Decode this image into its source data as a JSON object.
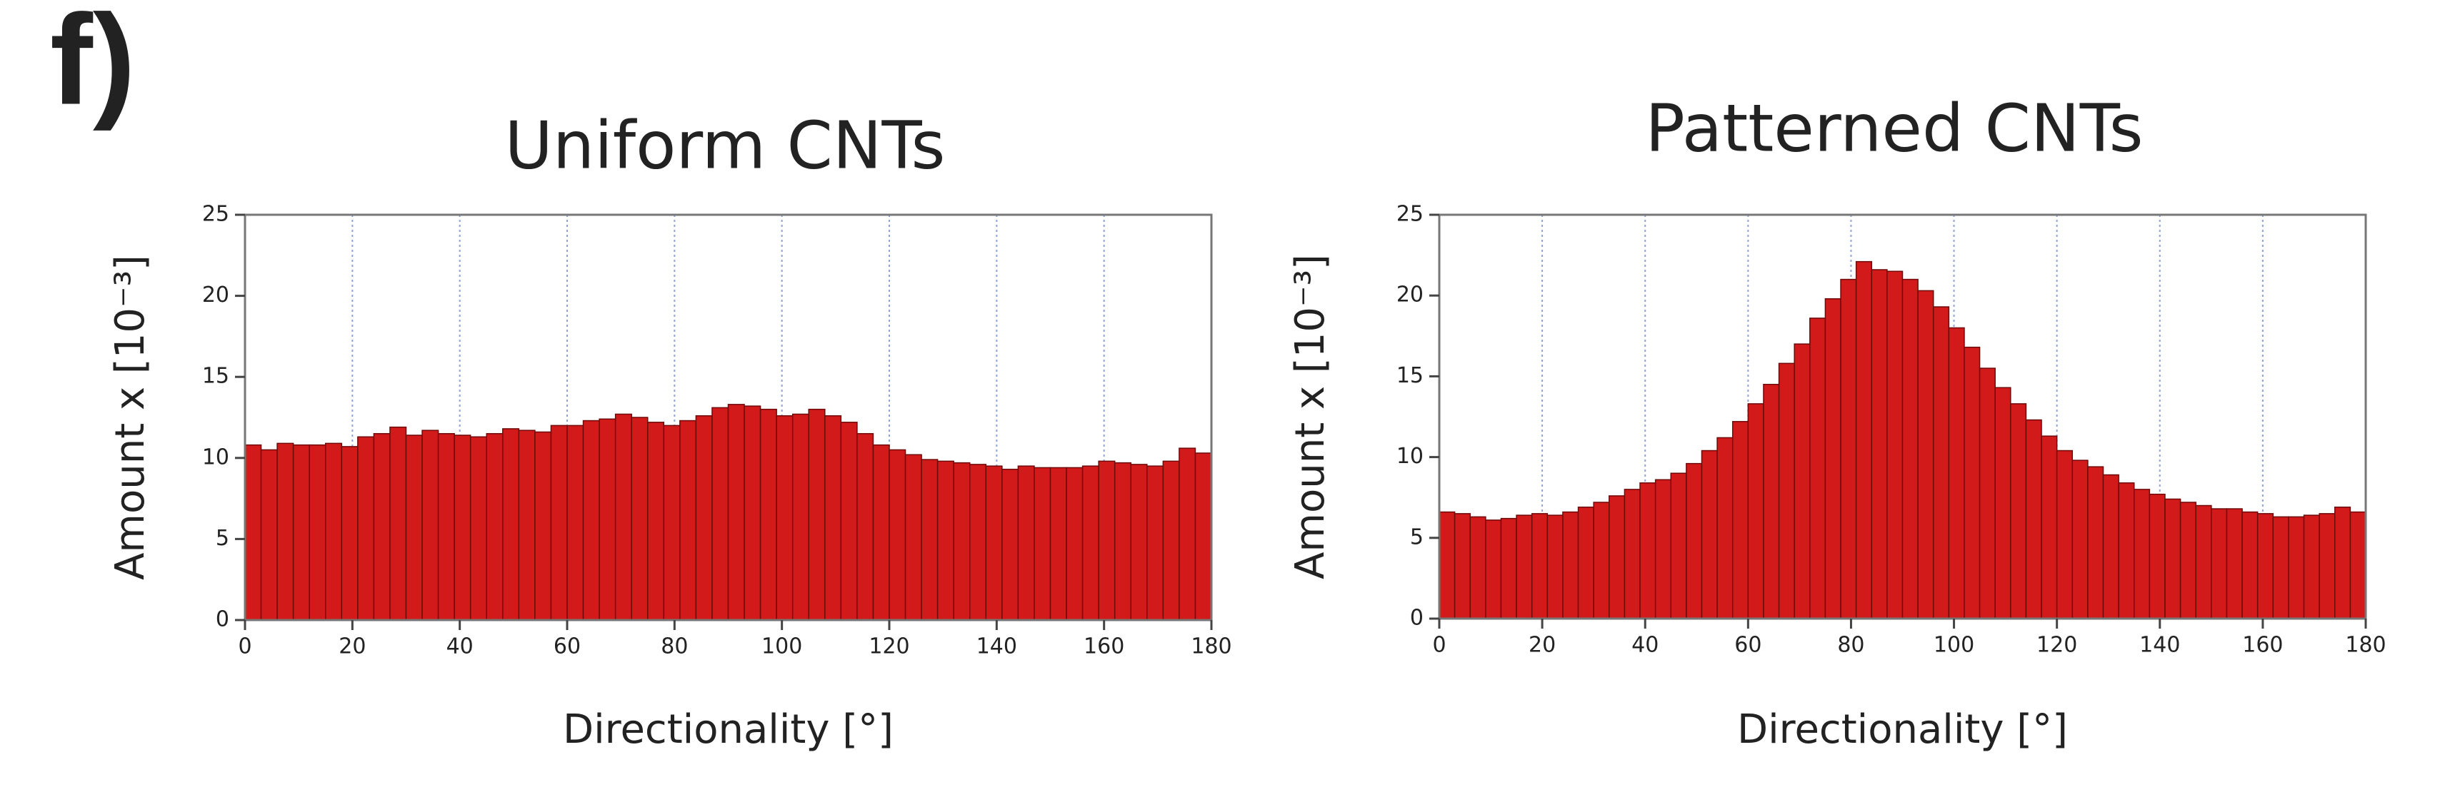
{
  "panel_label": "f)",
  "chart_data": [
    {
      "type": "histogram",
      "title": "Uniform CNTs",
      "x_label": "Directionality  [°]",
      "y_label": "Amount  x [10⁻³]",
      "bins": [
        0,
        3,
        6,
        9,
        12,
        15,
        18,
        21,
        24,
        27,
        30,
        33,
        36,
        39,
        42,
        45,
        48,
        51,
        54,
        57,
        60,
        63,
        66,
        69,
        72,
        75,
        78,
        81,
        84,
        87,
        90,
        93,
        96,
        99,
        102,
        105,
        108,
        111,
        114,
        117,
        120,
        123,
        126,
        129,
        132,
        135,
        138,
        141,
        144,
        147,
        150,
        153,
        156,
        159,
        162,
        165,
        168,
        171,
        174,
        177,
        180
      ],
      "values": [
        10.8,
        10.5,
        10.9,
        10.8,
        10.8,
        10.9,
        10.7,
        11.3,
        11.5,
        11.9,
        11.4,
        11.7,
        11.5,
        11.4,
        11.3,
        11.5,
        11.8,
        11.7,
        11.6,
        12.0,
        12.0,
        12.3,
        12.4,
        12.7,
        12.5,
        12.2,
        12.0,
        12.3,
        12.6,
        13.1,
        13.3,
        13.2,
        13.0,
        12.6,
        12.7,
        13.0,
        12.6,
        12.2,
        11.5,
        10.8,
        10.5,
        10.2,
        9.9,
        9.8,
        9.7,
        9.6,
        9.5,
        9.3,
        9.5,
        9.4,
        9.4,
        9.4,
        9.5,
        9.8,
        9.7,
        9.6,
        9.5,
        9.8,
        10.6,
        10.3
      ],
      "color": "#d21a1a",
      "xlim": [
        0,
        180
      ],
      "xticks": [
        0,
        20,
        40,
        60,
        80,
        100,
        120,
        140,
        160,
        180
      ],
      "ylim": [
        0,
        25
      ],
      "yticks": [
        0,
        5,
        10,
        15,
        20,
        25
      ],
      "grid": "x"
    },
    {
      "type": "histogram",
      "title": "Patterned CNTs",
      "x_label": "Directionality  [°]",
      "y_label": "Amount  x [10⁻³]",
      "bins": [
        0,
        3,
        6,
        9,
        12,
        15,
        18,
        21,
        24,
        27,
        30,
        33,
        36,
        39,
        42,
        45,
        48,
        51,
        54,
        57,
        60,
        63,
        66,
        69,
        72,
        75,
        78,
        81,
        84,
        87,
        90,
        93,
        96,
        99,
        102,
        105,
        108,
        111,
        114,
        117,
        120,
        123,
        126,
        129,
        132,
        135,
        138,
        141,
        144,
        147,
        150,
        153,
        156,
        159,
        162,
        165,
        168,
        171,
        174,
        177,
        180
      ],
      "values": [
        6.6,
        6.5,
        6.3,
        6.1,
        6.2,
        6.4,
        6.5,
        6.4,
        6.6,
        6.9,
        7.2,
        7.6,
        8.0,
        8.4,
        8.6,
        9.0,
        9.6,
        10.4,
        11.2,
        12.2,
        13.3,
        14.5,
        15.8,
        17.0,
        18.6,
        19.8,
        21.0,
        22.1,
        21.6,
        21.5,
        21.0,
        20.3,
        19.3,
        18.0,
        16.8,
        15.5,
        14.3,
        13.3,
        12.3,
        11.3,
        10.4,
        9.8,
        9.4,
        8.9,
        8.4,
        8.0,
        7.7,
        7.4,
        7.2,
        7.0,
        6.8,
        6.8,
        6.6,
        6.5,
        6.3,
        6.3,
        6.4,
        6.5,
        6.9,
        6.6
      ],
      "color": "#d21a1a",
      "xlim": [
        0,
        180
      ],
      "xticks": [
        0,
        20,
        40,
        60,
        80,
        100,
        120,
        140,
        160,
        180
      ],
      "ylim": [
        0,
        25
      ],
      "yticks": [
        0,
        5,
        10,
        15,
        20,
        25
      ],
      "grid": "x"
    }
  ]
}
